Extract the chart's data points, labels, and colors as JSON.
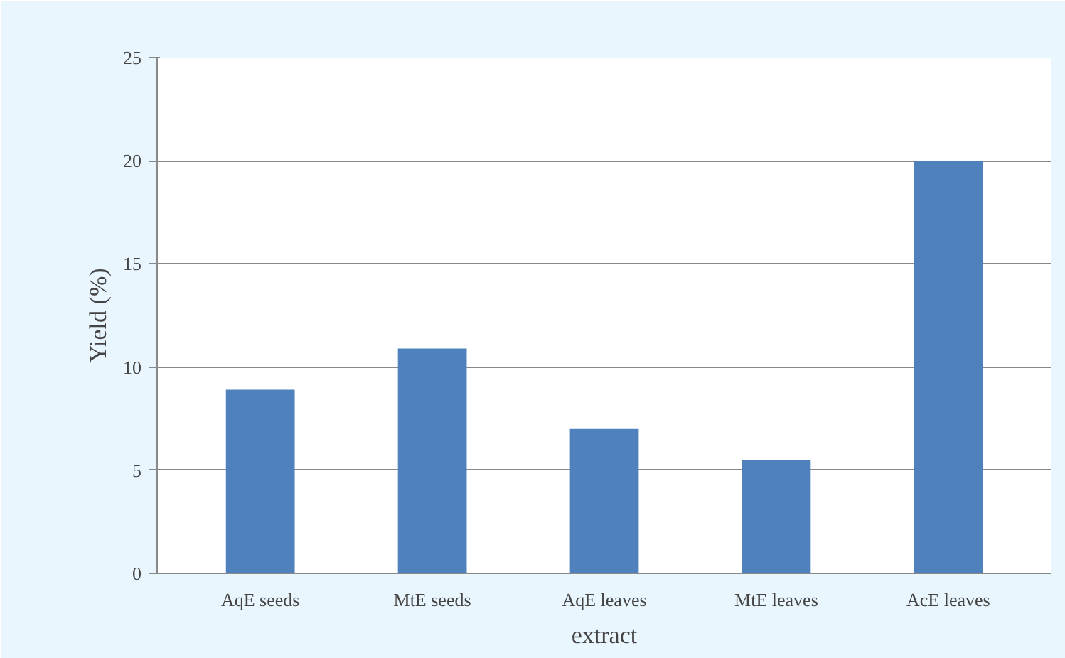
{
  "chart_data": {
    "type": "bar",
    "xlabel": "extract",
    "ylabel": "Yield (%)",
    "categories": [
      "AqE seeds",
      "MtE seeds",
      "AqE leaves",
      "MtE leaves",
      "AcE leaves"
    ],
    "values": [
      8.9,
      10.9,
      7.0,
      5.5,
      20.0
    ],
    "color": "#4f81bd",
    "ylim": [
      0,
      25
    ],
    "yticks": [
      0,
      5,
      10,
      15,
      20,
      25
    ],
    "grid": "y"
  }
}
